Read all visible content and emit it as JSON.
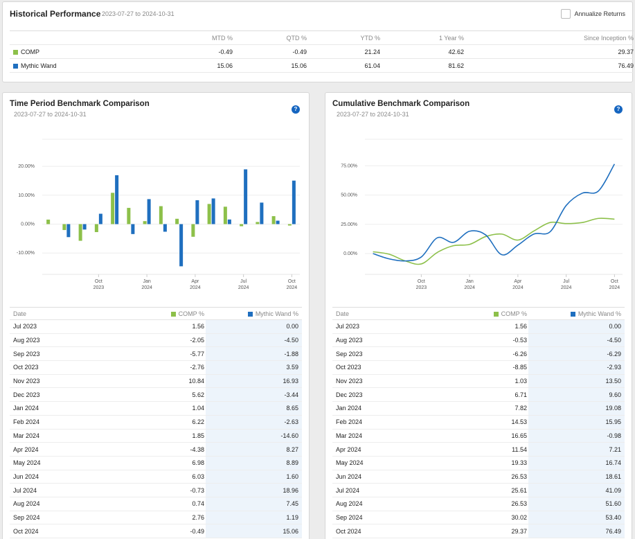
{
  "historical": {
    "title": "Historical Performance",
    "range": "2023-07-27 to 2024-10-31",
    "annualize_label": "Annualize Returns",
    "columns": [
      "MTD %",
      "QTD %",
      "YTD %",
      "1 Year %",
      "Since Inception %"
    ],
    "rows": [
      {
        "name": "COMP",
        "color": "#8dc04a",
        "values": [
          "-0.49",
          "-0.49",
          "21.24",
          "42.62",
          "29.37"
        ]
      },
      {
        "name": "Mythic Wand",
        "color": "#1f6fbf",
        "values": [
          "15.06",
          "15.06",
          "61.04",
          "81.62",
          "76.49"
        ]
      }
    ]
  },
  "time_period": {
    "title": "Time Period Benchmark Comparison",
    "range": "2023-07-27 to 2024-10-31",
    "help": "?",
    "table": {
      "headers": [
        "Date",
        "COMP %",
        "Mythic Wand %"
      ],
      "rows": [
        [
          "Jul 2023",
          "1.56",
          "0.00"
        ],
        [
          "Aug 2023",
          "-2.05",
          "-4.50"
        ],
        [
          "Sep 2023",
          "-5.77",
          "-1.88"
        ],
        [
          "Oct 2023",
          "-2.76",
          "3.59"
        ],
        [
          "Nov 2023",
          "10.84",
          "16.93"
        ],
        [
          "Dec 2023",
          "5.62",
          "-3.44"
        ],
        [
          "Jan 2024",
          "1.04",
          "8.65"
        ],
        [
          "Feb 2024",
          "6.22",
          "-2.63"
        ],
        [
          "Mar 2024",
          "1.85",
          "-14.60"
        ],
        [
          "Apr 2024",
          "-4.38",
          "8.27"
        ],
        [
          "May 2024",
          "6.98",
          "8.89"
        ],
        [
          "Jun 2024",
          "6.03",
          "1.60"
        ],
        [
          "Jul 2024",
          "-0.73",
          "18.96"
        ],
        [
          "Aug 2024",
          "0.74",
          "7.45"
        ],
        [
          "Sep 2024",
          "2.76",
          "1.19"
        ],
        [
          "Oct 2024",
          "-0.49",
          "15.06"
        ]
      ]
    }
  },
  "cumulative": {
    "title": "Cumulative Benchmark Comparison",
    "range": "2023-07-27 to 2024-10-31",
    "help": "?",
    "table": {
      "headers": [
        "Date",
        "COMP %",
        "Mythic Wand %"
      ],
      "rows": [
        [
          "Jul 2023",
          "1.56",
          "0.00"
        ],
        [
          "Aug 2023",
          "-0.53",
          "-4.50"
        ],
        [
          "Sep 2023",
          "-6.26",
          "-6.29"
        ],
        [
          "Oct 2023",
          "-8.85",
          "-2.93"
        ],
        [
          "Nov 2023",
          "1.03",
          "13.50"
        ],
        [
          "Dec 2023",
          "6.71",
          "9.60"
        ],
        [
          "Jan 2024",
          "7.82",
          "19.08"
        ],
        [
          "Feb 2024",
          "14.53",
          "15.95"
        ],
        [
          "Mar 2024",
          "16.65",
          "-0.98"
        ],
        [
          "Apr 2024",
          "11.54",
          "7.21"
        ],
        [
          "May 2024",
          "19.33",
          "16.74"
        ],
        [
          "Jun 2024",
          "26.53",
          "18.61"
        ],
        [
          "Jul 2024",
          "25.61",
          "41.09"
        ],
        [
          "Aug 2024",
          "26.53",
          "51.60"
        ],
        [
          "Sep 2024",
          "30.02",
          "53.40"
        ],
        [
          "Oct 2024",
          "29.37",
          "76.49"
        ]
      ]
    }
  },
  "chart_data": [
    {
      "type": "bar",
      "categories": [
        "Jul 2023",
        "Aug 2023",
        "Sep 2023",
        "Oct 2023",
        "Nov 2023",
        "Dec 2023",
        "Jan 2024",
        "Feb 2024",
        "Mar 2024",
        "Apr 2024",
        "May 2024",
        "Jun 2024",
        "Jul 2024",
        "Aug 2024",
        "Sep 2024",
        "Oct 2024"
      ],
      "series": [
        {
          "name": "COMP",
          "color": "#8dc04a",
          "values": [
            1.56,
            -2.05,
            -5.77,
            -2.76,
            10.84,
            5.62,
            1.04,
            6.22,
            1.85,
            -4.38,
            6.98,
            6.03,
            -0.73,
            0.74,
            2.76,
            -0.49
          ]
        },
        {
          "name": "Mythic Wand",
          "color": "#1f6fbf",
          "values": [
            0.0,
            -4.5,
            -1.88,
            3.59,
            16.93,
            -3.44,
            8.65,
            -2.63,
            -14.6,
            8.27,
            8.89,
            1.6,
            18.96,
            7.45,
            1.19,
            15.06
          ]
        }
      ],
      "ylim": [
        -17,
        30
      ],
      "yticks": [
        20,
        10,
        0,
        -10
      ],
      "ytick_labels": [
        "20.00%",
        "10.00%",
        "0.00%",
        "-10.00%"
      ],
      "xticks": [
        {
          "index": 3,
          "label": "Oct",
          "year": "2023"
        },
        {
          "index": 6,
          "label": "Jan",
          "year": "2024"
        },
        {
          "index": 9,
          "label": "Apr",
          "year": "2024"
        },
        {
          "index": 12,
          "label": "Jul",
          "year": "2024"
        },
        {
          "index": 15,
          "label": "Oct",
          "year": "2024"
        }
      ],
      "grid": true
    },
    {
      "type": "line",
      "categories": [
        "Jul 2023",
        "Aug 2023",
        "Sep 2023",
        "Oct 2023",
        "Nov 2023",
        "Dec 2023",
        "Jan 2024",
        "Feb 2024",
        "Mar 2024",
        "Apr 2024",
        "May 2024",
        "Jun 2024",
        "Jul 2024",
        "Aug 2024",
        "Sep 2024",
        "Oct 2024"
      ],
      "series": [
        {
          "name": "COMP",
          "color": "#8dc04a",
          "values": [
            1.56,
            -0.53,
            -6.26,
            -8.85,
            1.03,
            6.71,
            7.82,
            14.53,
            16.65,
            11.54,
            19.33,
            26.53,
            25.61,
            26.53,
            30.02,
            29.37
          ]
        },
        {
          "name": "Mythic Wand",
          "color": "#1f6fbf",
          "values": [
            0.0,
            -4.5,
            -6.29,
            -2.93,
            13.5,
            9.6,
            19.08,
            15.95,
            -0.98,
            7.21,
            16.74,
            18.61,
            41.09,
            51.6,
            53.4,
            76.49
          ]
        }
      ],
      "ylim": [
        -18,
        100
      ],
      "yticks": [
        75,
        50,
        25,
        0
      ],
      "ytick_labels": [
        "75.00%",
        "50.00%",
        "25.00%",
        "0.00%"
      ],
      "xticks": [
        {
          "index": 3,
          "label": "Oct",
          "year": "2023"
        },
        {
          "index": 6,
          "label": "Jan",
          "year": "2024"
        },
        {
          "index": 9,
          "label": "Apr",
          "year": "2024"
        },
        {
          "index": 12,
          "label": "Jul",
          "year": "2024"
        },
        {
          "index": 15,
          "label": "Oct",
          "year": "2024"
        }
      ],
      "grid": true
    }
  ]
}
